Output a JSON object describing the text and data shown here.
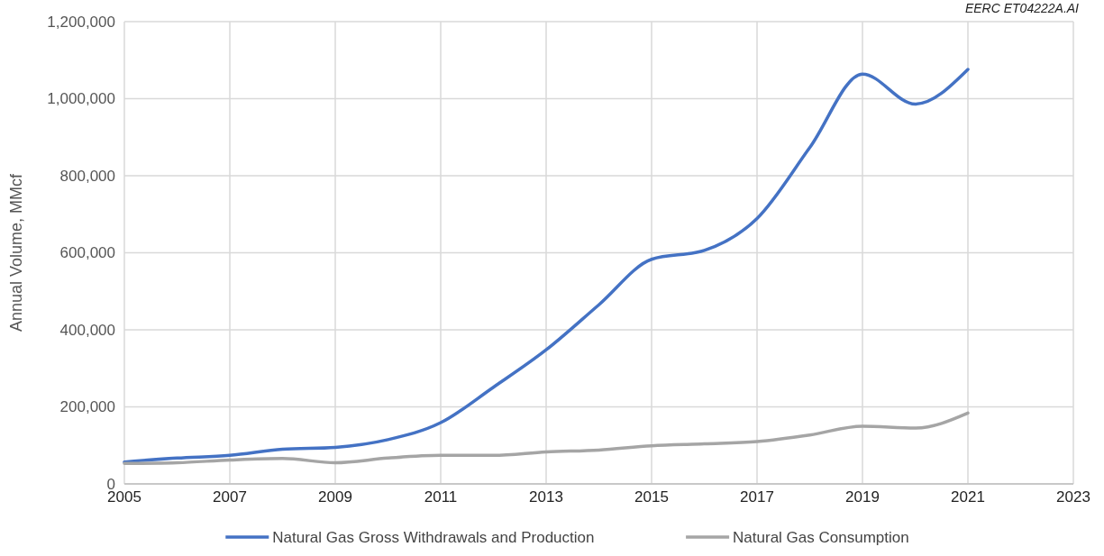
{
  "chart_data": {
    "type": "line",
    "ylabel": "Annual Volume, MMcf",
    "annotations": [
      "EERC ET04222A.AI"
    ],
    "x": [
      2005,
      2006,
      2007,
      2008,
      2009,
      2010,
      2011,
      2012,
      2013,
      2014,
      2015,
      2016,
      2017,
      2018,
      2019,
      2020,
      2021
    ],
    "series": [
      {
        "name": "Natural Gas Gross Withdrawals and Production",
        "color": "#4472c4",
        "values": [
          57000,
          67000,
          74000,
          90000,
          95000,
          115000,
          159000,
          251000,
          348000,
          465000,
          583000,
          606000,
          689000,
          873000,
          1064000,
          986000,
          1076000
        ]
      },
      {
        "name": "Natural Gas Consumption",
        "color": "#a5a5a5",
        "values": [
          53000,
          55000,
          62000,
          66000,
          55000,
          67000,
          74000,
          74000,
          83000,
          88000,
          99000,
          104000,
          110000,
          127000,
          150000,
          145000,
          184000
        ]
      }
    ],
    "xlim": [
      2005,
      2023
    ],
    "xticks": [
      2005,
      2007,
      2009,
      2011,
      2013,
      2015,
      2017,
      2019,
      2021,
      2023
    ],
    "ylim": [
      0,
      1200000
    ],
    "yticks": [
      {
        "value": 0,
        "label": "0"
      },
      {
        "value": 200000,
        "label": "200,000"
      },
      {
        "value": 400000,
        "label": "400,000"
      },
      {
        "value": 600000,
        "label": "600,000"
      },
      {
        "value": 800000,
        "label": "800,000"
      },
      {
        "value": 1000000,
        "label": "1,000,000"
      },
      {
        "value": 1200000,
        "label": "1,200,000"
      }
    ],
    "grid": true,
    "legend": "bottom",
    "marker": "none",
    "line_style": "solid"
  }
}
